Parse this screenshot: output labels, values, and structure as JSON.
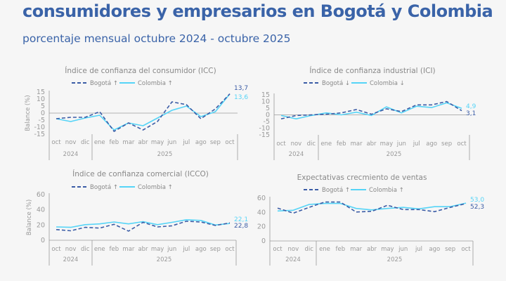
{
  "header": {
    "title": "consumidores y empresarios en Bogotá y Colombia",
    "subtitle": "porcentaje mensual octubre 2024 - octubre 2025"
  },
  "colors": {
    "bogota": "#3b5ca6",
    "colombia": "#55d4f7",
    "axis": "#9a9a9a",
    "text": "#8a8a8a"
  },
  "chart_data": [
    {
      "type": "line",
      "title": "Índice de confianza del consumidor (ICC)",
      "ylabel": "Balance (%)",
      "ylim": [
        -15,
        15
      ],
      "yticks": [
        "15",
        "10",
        "5",
        "0",
        "-5",
        "-10",
        "-15"
      ],
      "categories": [
        "oct",
        "nov",
        "dic",
        "ene",
        "feb",
        "mar",
        "abr",
        "may",
        "jun",
        "jul",
        "ago",
        "sep",
        "oct"
      ],
      "years": [
        "2024",
        "2025"
      ],
      "series": [
        {
          "name": "Bogotá ↑",
          "style": "dashed",
          "values": [
            -4,
            -3,
            -3,
            1,
            -13,
            -7,
            -12,
            -6,
            8,
            6,
            -4,
            3,
            13.7
          ],
          "end_label": "13,7"
        },
        {
          "name": "Colombia ↑",
          "style": "solid",
          "values": [
            -4,
            -6,
            -3.5,
            -1.5,
            -12,
            -7,
            -9,
            -3.5,
            2,
            5,
            -2.5,
            1,
            13.6
          ],
          "end_label": "13,6"
        }
      ]
    },
    {
      "type": "line",
      "title": "Índice de confianza industrial (ICI)",
      "ylabel": "",
      "ylim": [
        -15,
        15
      ],
      "yticks": [
        "15",
        "10",
        "5",
        "0",
        "-5",
        "-10",
        "-15"
      ],
      "categories": [
        "oct",
        "nov",
        "dic",
        "ene",
        "feb",
        "mar",
        "abr",
        "may",
        "jun",
        "jul",
        "ago",
        "sep",
        "oct"
      ],
      "years": [
        "2024",
        "2025"
      ],
      "series": [
        {
          "name": "Bogotá ↓",
          "style": "dashed",
          "values": [
            -3,
            -0.5,
            0,
            0.5,
            1.5,
            4,
            0.5,
            4.5,
            2.5,
            7.5,
            7.5,
            10,
            3.1
          ],
          "end_label": "3,1"
        },
        {
          "name": "Colombia ↓",
          "style": "solid",
          "values": [
            -0.5,
            -3,
            -0.5,
            1.5,
            0,
            2,
            -0.5,
            6,
            1.5,
            6.5,
            5.5,
            9,
            4.9
          ],
          "end_label": "4,9"
        }
      ]
    },
    {
      "type": "line",
      "title": "Índice de confianza comercial (ICCO)",
      "ylabel": "Balance (%)",
      "ylim": [
        0,
        60
      ],
      "yticks": [
        "60",
        "40",
        "20",
        "0"
      ],
      "categories": [
        "oct",
        "nov",
        "dic",
        "ene",
        "feb",
        "mar",
        "abr",
        "may",
        "jun",
        "jul",
        "ago",
        "sep",
        "oct"
      ],
      "years": [
        "2024",
        "2025"
      ],
      "series": [
        {
          "name": "Bogotá ↑",
          "style": "dashed",
          "values": [
            14,
            12.5,
            17,
            16,
            21,
            12,
            23.5,
            17.5,
            19,
            25,
            24,
            19.5,
            22.8
          ],
          "end_label": "22,8"
        },
        {
          "name": "Colombia ↑",
          "style": "solid",
          "values": [
            17.5,
            17,
            20.5,
            21.5,
            24,
            21.5,
            24.5,
            20.5,
            23.5,
            27,
            26,
            20,
            22.1
          ],
          "end_label": "22,1"
        }
      ]
    },
    {
      "type": "line",
      "title": "Expectativas crecmiento de ventas",
      "ylabel": "",
      "ylim": [
        0,
        60
      ],
      "yticks": [
        "60",
        "40",
        "20",
        "0"
      ],
      "categories": [
        "oct",
        "nov",
        "dic",
        "ene",
        "feb",
        "mar",
        "abr",
        "may",
        "jun",
        "jul",
        "ago",
        "sep",
        "oct"
      ],
      "years": [
        "2024",
        "2025"
      ],
      "series": [
        {
          "name": "Bogotá ↑",
          "style": "dashed",
          "values": [
            46,
            39,
            47,
            54.5,
            54.5,
            40.5,
            41.5,
            50,
            44,
            44,
            41,
            47,
            52.3
          ],
          "end_label": "52,3"
        },
        {
          "name": "Colombia ↑",
          "style": "solid",
          "values": [
            42,
            43,
            51,
            52.5,
            52.5,
            45.5,
            43.5,
            45.5,
            47,
            45,
            48,
            48,
            53.0
          ],
          "end_label": "53,0"
        }
      ]
    }
  ]
}
